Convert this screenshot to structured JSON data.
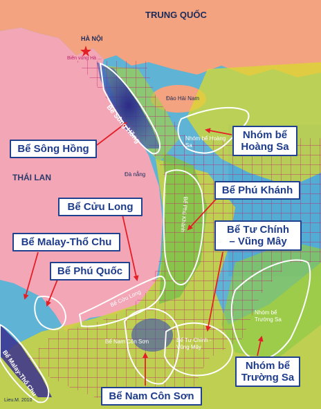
{
  "map": {
    "country_label": "TRUNG QUỐC",
    "capital_label": "HÀ NỘI",
    "border_note": "Biên vùng Hà ...",
    "island_label": "Đảo Hải Nam",
    "city_label": "Đà nẵng",
    "thailand_label": "THÁI LAN",
    "credit": "Lieu.M. 2010",
    "in_map_labels": {
      "song_hong": "Bể Sông Hồng",
      "hoang_sa": "Nhóm bể Hoàng Sa",
      "phu_khanh": "Bể Phú Khánh",
      "cuu_long": "Bể Cửu Long",
      "nam_con_son": "Bể Nam Côn Sơn",
      "tu_chinh": "Bể Tư Chính - Vũng Mây",
      "truong_sa": "Nhóm bể Trường Sa",
      "malay": "Bể Malay-Thổ Chu"
    }
  },
  "labels": {
    "song_hong": "Bể Sông Hồng",
    "hoang_sa_line1": "Nhóm bể",
    "hoang_sa_line2": "Hoàng Sa",
    "phu_khanh": "Bể Phú Khánh",
    "cuu_long": "Bể Cửu Long",
    "tu_chinh_line1": "Bể Tư Chính",
    "tu_chinh_line2": "– Vũng Mây",
    "malay": "Bể Malay-Thổ Chu",
    "phu_quoc": "Bể Phú Quốc",
    "truong_sa_line1": "Nhóm bể",
    "truong_sa_line2": "Trường Sa",
    "nam_con_son": "Bể Nam Côn Sơn"
  },
  "colors": {
    "sea": "#5fb3d4",
    "land_china": "#f3a37f",
    "land_vietnam": "#f2a6b6",
    "shelf_yellow": "#d8d92e",
    "shelf_green": "#7fc24a",
    "deep_purple": "#3b2f8f",
    "grid_line": "#c0206e",
    "label_border": "#1f3f8f",
    "label_text": "#1e3c8c",
    "arrow": "#e41e26"
  }
}
